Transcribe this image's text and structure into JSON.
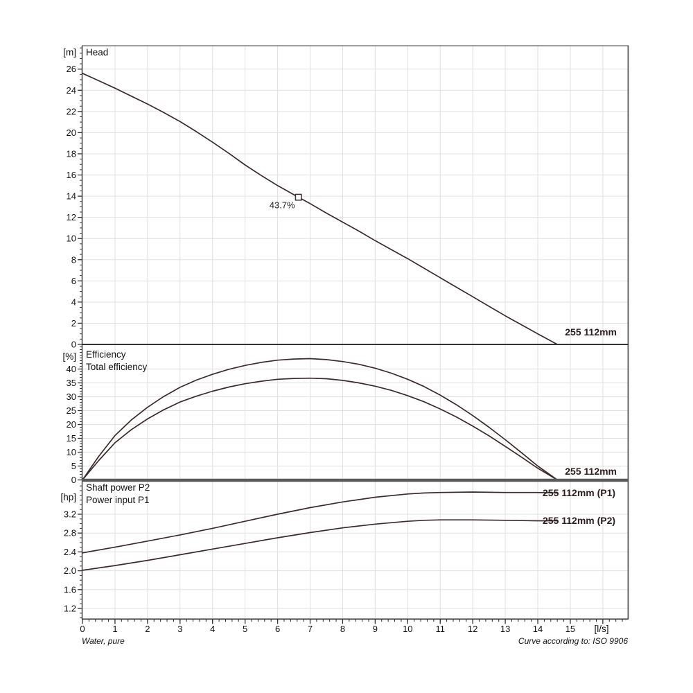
{
  "page": {
    "footer_left": "Water, pure",
    "footer_right": "Curve according to: ISO 9906"
  },
  "colors": {
    "curve": "#3b2a2a",
    "grid": "#e0e0e0",
    "axis": "#333333",
    "frame": "#666666",
    "separator": "#5a5a5a",
    "text": "#111111",
    "background": "#ffffff"
  },
  "chart_data": [
    {
      "id": "head",
      "type": "line",
      "title": "Head",
      "ylabel": "[m]",
      "xlabel": "[l/s]",
      "xlim": [
        0,
        16.78
      ],
      "ylim": [
        0,
        28.2
      ],
      "grid": true,
      "xticks": [
        0,
        1,
        2,
        3,
        4,
        5,
        6,
        7,
        8,
        9,
        10,
        11,
        12,
        13,
        14,
        15
      ],
      "yticks": [
        0,
        2,
        4,
        6,
        8,
        10,
        12,
        14,
        16,
        18,
        20,
        22,
        24,
        26
      ],
      "curve_label": "255 112mm",
      "series": [
        {
          "name": "255 112mm",
          "points": [
            [
              0,
              25.6
            ],
            [
              0.5,
              24.9
            ],
            [
              1,
              24.2
            ],
            [
              1.5,
              23.45
            ],
            [
              2,
              22.7
            ],
            [
              2.5,
              21.9
            ],
            [
              3,
              21.05
            ],
            [
              3.5,
              20.1
            ],
            [
              4,
              19.1
            ],
            [
              4.5,
              18.05
            ],
            [
              5,
              16.95
            ],
            [
              5.5,
              15.95
            ],
            [
              6,
              15.0
            ],
            [
              6.64,
              13.9
            ],
            [
              7,
              13.3
            ],
            [
              7.5,
              12.4
            ],
            [
              8,
              11.55
            ],
            [
              8.5,
              10.7
            ],
            [
              9,
              9.8
            ],
            [
              9.5,
              8.95
            ],
            [
              10,
              8.1
            ],
            [
              10.5,
              7.2
            ],
            [
              11,
              6.3
            ],
            [
              11.5,
              5.4
            ],
            [
              12,
              4.5
            ],
            [
              12.5,
              3.6
            ],
            [
              13,
              2.7
            ],
            [
              13.5,
              1.85
            ],
            [
              14,
              1.0
            ],
            [
              14.6,
              0
            ]
          ]
        }
      ],
      "annotations": [
        {
          "label": "43.7%",
          "x": 6.64,
          "y": 13.9,
          "marker": "square"
        }
      ]
    },
    {
      "id": "efficiency",
      "type": "line",
      "title": "Efficiency",
      "subtitle": "Total efficiency",
      "ylabel": "[%]",
      "ylim": [
        0,
        48.9
      ],
      "grid": true,
      "yticks": [
        0,
        5,
        10,
        15,
        20,
        25,
        30,
        35,
        40
      ],
      "curve_label": "255 112mm",
      "series": [
        {
          "name": "Efficiency",
          "points": [
            [
              0,
              0
            ],
            [
              0.5,
              8.5
            ],
            [
              1,
              16
            ],
            [
              1.5,
              21.6
            ],
            [
              2,
              26.2
            ],
            [
              2.5,
              30.1
            ],
            [
              3,
              33.4
            ],
            [
              3.5,
              36
            ],
            [
              4,
              38.1
            ],
            [
              4.5,
              39.9
            ],
            [
              5,
              41.3
            ],
            [
              5.5,
              42.4
            ],
            [
              6,
              43.2
            ],
            [
              6.5,
              43.6
            ],
            [
              7,
              43.75
            ],
            [
              7.5,
              43.4
            ],
            [
              8,
              42.7
            ],
            [
              8.5,
              41.7
            ],
            [
              9,
              40.3
            ],
            [
              9.5,
              38.5
            ],
            [
              10,
              36.3
            ],
            [
              10.5,
              33.7
            ],
            [
              11,
              30.6
            ],
            [
              11.5,
              27.1
            ],
            [
              12,
              23.2
            ],
            [
              12.5,
              19
            ],
            [
              13,
              14.5
            ],
            [
              13.5,
              9.8
            ],
            [
              14,
              5
            ],
            [
              14.6,
              0
            ]
          ]
        },
        {
          "name": "Total efficiency",
          "points": [
            [
              0,
              0
            ],
            [
              0.5,
              7
            ],
            [
              1,
              13.4
            ],
            [
              1.5,
              18.1
            ],
            [
              2,
              22
            ],
            [
              2.5,
              25.3
            ],
            [
              3,
              28.1
            ],
            [
              3.5,
              30.2
            ],
            [
              4,
              32
            ],
            [
              4.5,
              33.5
            ],
            [
              5,
              34.7
            ],
            [
              5.5,
              35.6
            ],
            [
              6,
              36.3
            ],
            [
              6.5,
              36.6
            ],
            [
              7,
              36.7
            ],
            [
              7.5,
              36.5
            ],
            [
              8,
              35.9
            ],
            [
              8.5,
              35
            ],
            [
              9,
              33.8
            ],
            [
              9.5,
              32.3
            ],
            [
              10,
              30.4
            ],
            [
              10.5,
              28.2
            ],
            [
              11,
              25.6
            ],
            [
              11.5,
              22.7
            ],
            [
              12,
              19.4
            ],
            [
              12.5,
              15.9
            ],
            [
              13,
              12.1
            ],
            [
              13.5,
              8.2
            ],
            [
              14,
              4.2
            ],
            [
              14.6,
              0
            ]
          ]
        }
      ]
    },
    {
      "id": "power",
      "type": "line",
      "title": "Shaft power P2",
      "subtitle": "Power input P1",
      "ylabel": "[hp]",
      "ylim": [
        0.97,
        3.89
      ],
      "grid": true,
      "yticks": [
        "1.2",
        "1.6",
        "2.0",
        "2.4",
        "2.8",
        "3.2"
      ],
      "series": [
        {
          "name": "255 112mm (P1)",
          "points": [
            [
              0,
              2.38
            ],
            [
              1,
              2.5
            ],
            [
              2,
              2.63
            ],
            [
              3,
              2.76
            ],
            [
              4,
              2.9
            ],
            [
              5,
              3.05
            ],
            [
              6,
              3.2
            ],
            [
              7,
              3.34
            ],
            [
              8,
              3.46
            ],
            [
              9,
              3.56
            ],
            [
              10,
              3.63
            ],
            [
              10.5,
              3.65
            ],
            [
              11,
              3.66
            ],
            [
              12,
              3.67
            ],
            [
              13,
              3.66
            ],
            [
              14,
              3.66
            ],
            [
              14.6,
              3.65
            ]
          ]
        },
        {
          "name": "255 112mm (P2)",
          "points": [
            [
              0,
              2.01
            ],
            [
              1,
              2.11
            ],
            [
              2,
              2.22
            ],
            [
              3,
              2.34
            ],
            [
              4,
              2.46
            ],
            [
              5,
              2.58
            ],
            [
              6,
              2.7
            ],
            [
              7,
              2.81
            ],
            [
              8,
              2.91
            ],
            [
              9,
              2.99
            ],
            [
              10,
              3.05
            ],
            [
              10.5,
              3.07
            ],
            [
              11,
              3.08
            ],
            [
              12,
              3.08
            ],
            [
              13,
              3.07
            ],
            [
              14,
              3.06
            ],
            [
              14.6,
              3.06
            ]
          ]
        }
      ]
    }
  ]
}
